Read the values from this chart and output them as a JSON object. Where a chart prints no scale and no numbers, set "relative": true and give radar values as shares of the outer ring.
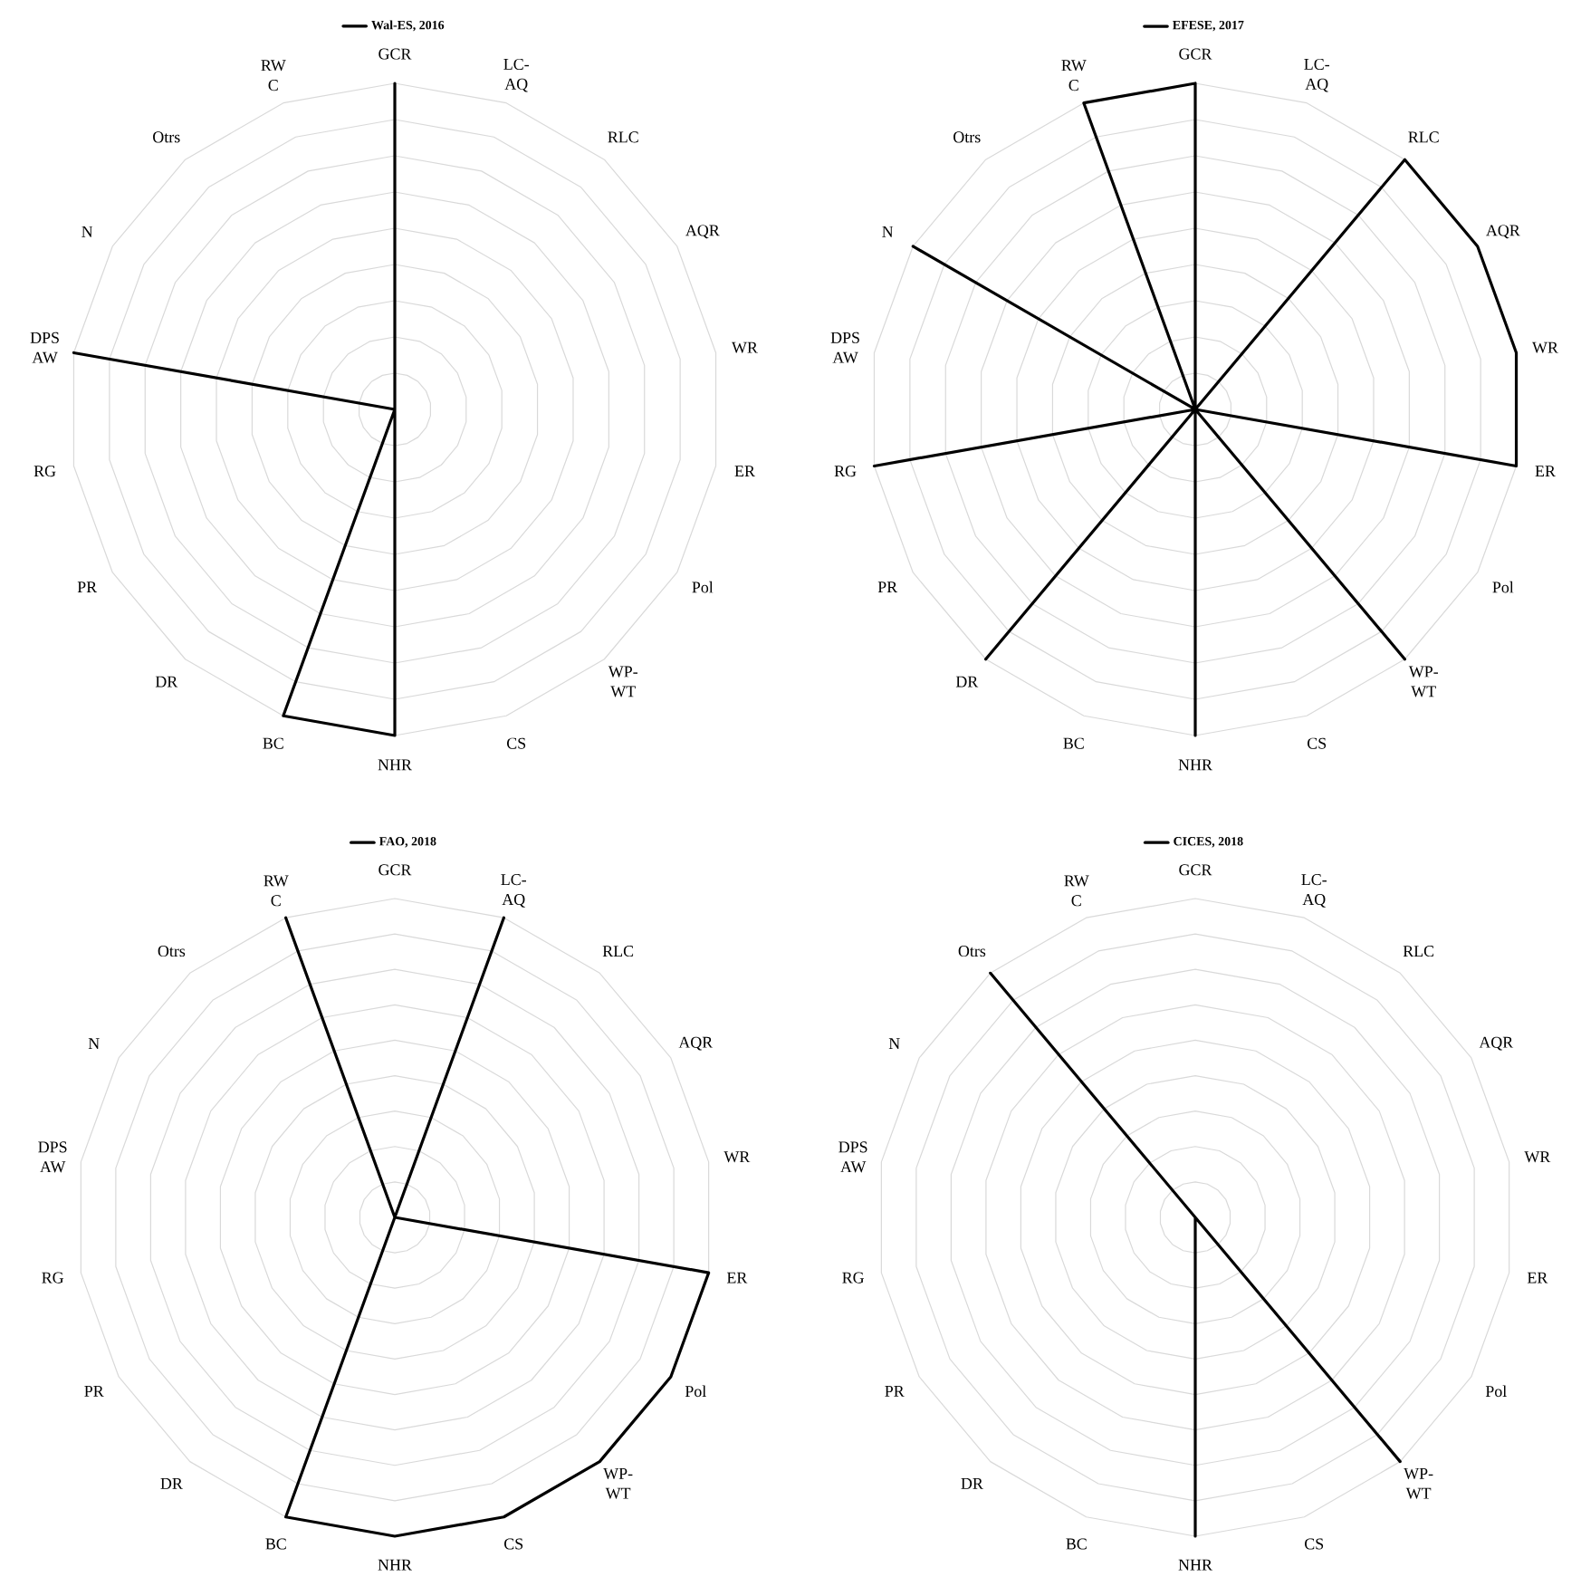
{
  "chart_data": [
    {
      "type": "radar",
      "categories": [
        "GCR",
        "LC-AQ",
        "RLC",
        "AQR",
        "WR",
        "ER",
        "Pol",
        "WP-WT",
        "CS",
        "NHR",
        "BC",
        "DR",
        "PR",
        "RG",
        "DPS AW",
        "N",
        "Otrs",
        "RW C"
      ],
      "relative": true,
      "grid": true,
      "legend": "top",
      "series": [
        {
          "name": "Wal-ES, 2016",
          "color": "#000000",
          "values": [
            1,
            0,
            0,
            0,
            0,
            0,
            0,
            0,
            0,
            1,
            1,
            0,
            0,
            0,
            1,
            0,
            0,
            0
          ]
        }
      ]
    },
    {
      "type": "radar",
      "categories": [
        "GCR",
        "LC-AQ",
        "RLC",
        "AQR",
        "WR",
        "ER",
        "Pol",
        "WP-WT",
        "CS",
        "NHR",
        "BC",
        "DR",
        "PR",
        "RG",
        "DPS AW",
        "N",
        "Otrs",
        "RW C"
      ],
      "relative": true,
      "grid": true,
      "legend": "top",
      "series": [
        {
          "name": "EFESE, 2017",
          "color": "#000000",
          "values": [
            1,
            0,
            1,
            1,
            1,
            1,
            0,
            1,
            0,
            1,
            0,
            1,
            0,
            1,
            0,
            1,
            0,
            1
          ]
        }
      ]
    },
    {
      "type": "radar",
      "categories": [
        "GCR",
        "LC-AQ",
        "RLC",
        "AQR",
        "WR",
        "ER",
        "Pol",
        "WP-WT",
        "CS",
        "NHR",
        "BC",
        "DR",
        "PR",
        "RG",
        "DPS AW",
        "N",
        "Otrs",
        "RW C"
      ],
      "relative": true,
      "grid": true,
      "legend": "top",
      "series": [
        {
          "name": "FAO, 2018",
          "color": "#000000",
          "values": [
            0,
            1,
            0,
            0,
            0,
            1,
            1,
            1,
            1,
            1,
            1,
            0,
            0,
            0,
            0,
            0,
            0,
            1
          ]
        }
      ]
    },
    {
      "type": "radar",
      "categories": [
        "GCR",
        "LC-AQ",
        "RLC",
        "AQR",
        "WR",
        "ER",
        "Pol",
        "WP-WT",
        "CS",
        "NHR",
        "BC",
        "DR",
        "PR",
        "RG",
        "DPS AW",
        "N",
        "Otrs",
        "RW C"
      ],
      "relative": true,
      "grid": true,
      "legend": "top",
      "series": [
        {
          "name": "CICES, 2018",
          "color": "#000000",
          "values": [
            0,
            0,
            0,
            0,
            0,
            0,
            0,
            1,
            0,
            1,
            0,
            0,
            0,
            0,
            0,
            0,
            1,
            0
          ]
        }
      ]
    }
  ]
}
